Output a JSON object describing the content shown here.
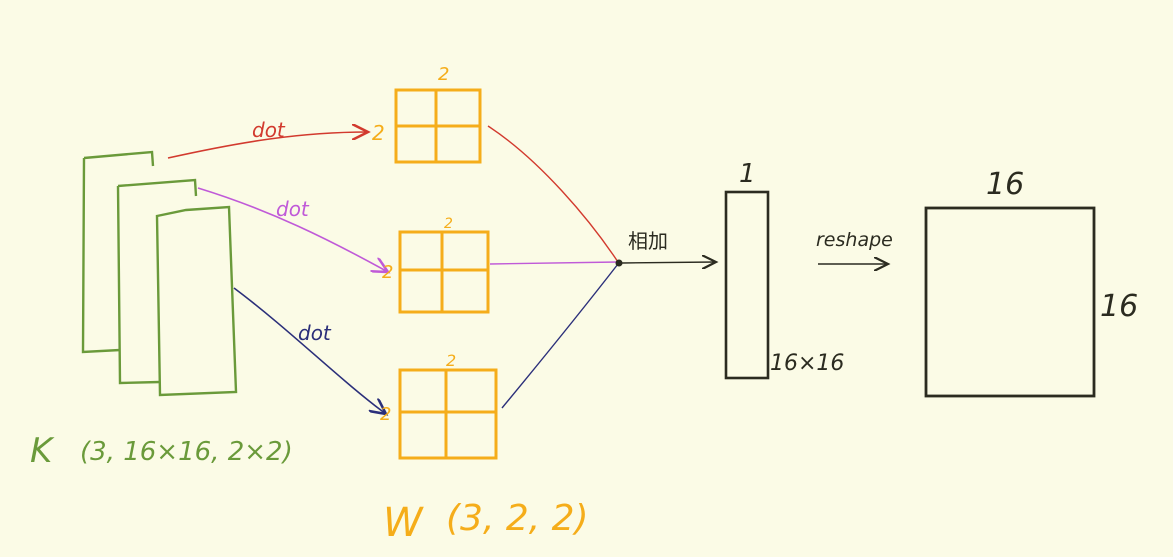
{
  "diagram": {
    "k_label": "K",
    "k_shape": "(3, 16×16, 2×2)",
    "w_label": "W",
    "w_shape": "(3, 2, 2)",
    "arrows": {
      "dot_top": "dot",
      "dot_mid": "dot",
      "dot_bot": "dot",
      "sum": "相加",
      "reshape": "reshape"
    },
    "w_blocks": [
      {
        "top_dim": "2",
        "left_dim": "2"
      },
      {
        "top_dim": "2",
        "left_dim": "2"
      },
      {
        "top_dim": "2",
        "left_dim": "2"
      }
    ],
    "column_vector": {
      "top_dim": "1",
      "side_dim": "16×16"
    },
    "matrix": {
      "top_dim": "16",
      "side_dim": "16"
    },
    "colors": {
      "background": "#fbfbe6",
      "green": "#6a9a3a",
      "orange": "#f5ad1a",
      "red": "#d23a2e",
      "magenta": "#c05ad8",
      "navy": "#2b2f7a",
      "black": "#2b2b20"
    }
  }
}
